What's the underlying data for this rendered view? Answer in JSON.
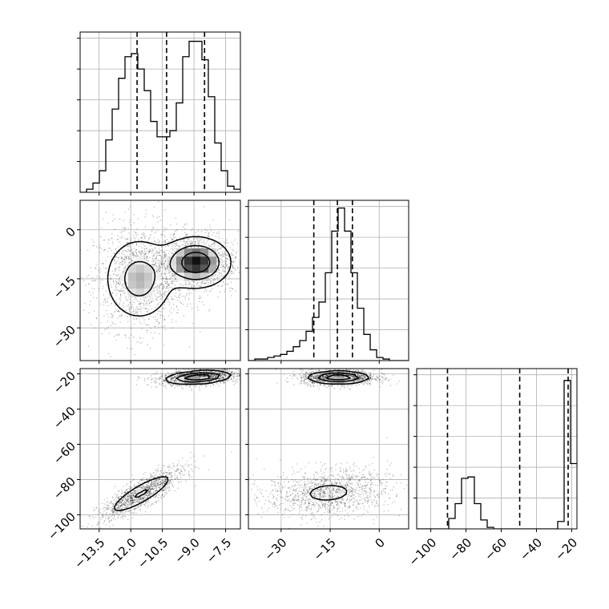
{
  "chart_data": {
    "type": "corner",
    "dimensions": [
      {
        "lim": [
          -14.4,
          -6.8
        ],
        "ticks": [
          -13.5,
          -12.0,
          -10.5,
          -9.0,
          -7.5
        ],
        "tick_labels": [
          "−13.5",
          "−12.0",
          "−10.5",
          "−9.0",
          "−7.5"
        ],
        "quantiles": [
          -11.7,
          -10.3,
          -8.5
        ]
      },
      {
        "lim": [
          -40,
          9
        ],
        "ticks": [
          -30,
          -15,
          0
        ],
        "tick_labels": [
          "−30",
          "−15",
          "0"
        ],
        "quantiles": [
          -20.0,
          -12.8,
          -8.2
        ]
      },
      {
        "lim": [
          -108,
          -17
        ],
        "ticks": [
          -100,
          -80,
          -60,
          -40,
          -20
        ],
        "tick_labels": [
          "−100",
          "−80",
          "−60",
          "−40",
          "−20"
        ],
        "quantiles": [
          -90.5,
          -49.5,
          -22.0
        ]
      }
    ],
    "histograms": [
      {
        "edges_lim": [
          -14.4,
          -6.8
        ],
        "values": [
          0,
          1,
          3,
          7,
          17,
          27,
          37,
          44,
          45,
          40,
          33,
          23,
          18,
          18,
          20,
          29,
          44,
          49,
          49,
          43,
          31,
          16,
          7,
          2,
          1
        ],
        "ymax": 52
      },
      {
        "edges_lim": [
          -40,
          9
        ],
        "values": [
          0,
          1,
          1,
          2,
          3,
          4,
          6,
          9,
          13,
          19,
          28,
          38,
          57,
          84,
          99,
          84,
          57,
          34,
          17,
          7,
          2,
          1,
          0,
          0,
          0
        ],
        "ymax": 104
      },
      {
        "edges_lim": [
          -108,
          -17
        ],
        "values": [
          0,
          0,
          0,
          0,
          0,
          7,
          17,
          34,
          35,
          17,
          6,
          1,
          0,
          0,
          0,
          0,
          0,
          0,
          0,
          0,
          0,
          0,
          5,
          100,
          44
        ],
        "ymax": 108
      }
    ],
    "pairs": [
      {
        "x_dim": 0,
        "y_dim": 1,
        "blobs": [
          {
            "mx": -11.6,
            "my": -15.0,
            "sx": 0.85,
            "sy": 6.5,
            "rho": 0.0,
            "weight": 1.0
          },
          {
            "mx": -8.9,
            "my": -10.0,
            "sx": 0.8,
            "sy": 3.8,
            "rho": 0.0,
            "weight": 1.0
          }
        ]
      },
      {
        "x_dim": 0,
        "y_dim": 2,
        "blobs": [
          {
            "mx": -11.5,
            "my": -88.0,
            "sx": 0.8,
            "sy": 6.0,
            "rho": 0.85,
            "weight": 0.45
          },
          {
            "mx": -8.8,
            "my": -22.0,
            "sx": 0.75,
            "sy": 1.8,
            "rho": 0.3,
            "weight": 0.55
          }
        ]
      },
      {
        "x_dim": 1,
        "y_dim": 2,
        "blobs": [
          {
            "mx": -15.5,
            "my": -87.5,
            "sx": 7.5,
            "sy": 5.5,
            "rho": 0.15,
            "weight": 0.45
          },
          {
            "mx": -12.5,
            "my": -22.0,
            "sx": 4.5,
            "sy": 1.7,
            "rho": 0.0,
            "weight": 0.55
          }
        ]
      }
    ],
    "grid": true
  }
}
